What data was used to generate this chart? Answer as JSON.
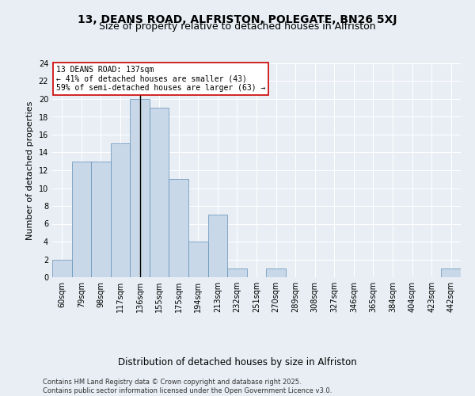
{
  "title1": "13, DEANS ROAD, ALFRISTON, POLEGATE, BN26 5XJ",
  "title2": "Size of property relative to detached houses in Alfriston",
  "xlabel": "Distribution of detached houses by size in Alfriston",
  "ylabel": "Number of detached properties",
  "footer": "Contains HM Land Registry data © Crown copyright and database right 2025.\nContains public sector information licensed under the Open Government Licence v3.0.",
  "bins": [
    "60sqm",
    "79sqm",
    "98sqm",
    "117sqm",
    "136sqm",
    "155sqm",
    "175sqm",
    "194sqm",
    "213sqm",
    "232sqm",
    "251sqm",
    "270sqm",
    "289sqm",
    "308sqm",
    "327sqm",
    "346sqm",
    "365sqm",
    "384sqm",
    "404sqm",
    "423sqm",
    "442sqm"
  ],
  "values": [
    2,
    13,
    13,
    15,
    20,
    19,
    11,
    4,
    7,
    1,
    0,
    1,
    0,
    0,
    0,
    0,
    0,
    0,
    0,
    0,
    1
  ],
  "bar_color": "#c8d8e8",
  "bar_edge_color": "#6090b8",
  "property_bin_index": 4,
  "property_line_color": "#000000",
  "annotation_text": "13 DEANS ROAD: 137sqm\n← 41% of detached houses are smaller (43)\n59% of semi-detached houses are larger (63) →",
  "annotation_box_color": "#ffffff",
  "annotation_box_edge_color": "#cc0000",
  "ylim": [
    0,
    24
  ],
  "yticks": [
    0,
    2,
    4,
    6,
    8,
    10,
    12,
    14,
    16,
    18,
    20,
    22,
    24
  ],
  "background_color": "#e8eef4",
  "plot_background_color": "#e8eef4",
  "grid_color": "#ffffff",
  "title1_fontsize": 10,
  "title2_fontsize": 9,
  "xlabel_fontsize": 8.5,
  "ylabel_fontsize": 8,
  "tick_fontsize": 7,
  "annotation_fontsize": 7,
  "footer_fontsize": 6
}
